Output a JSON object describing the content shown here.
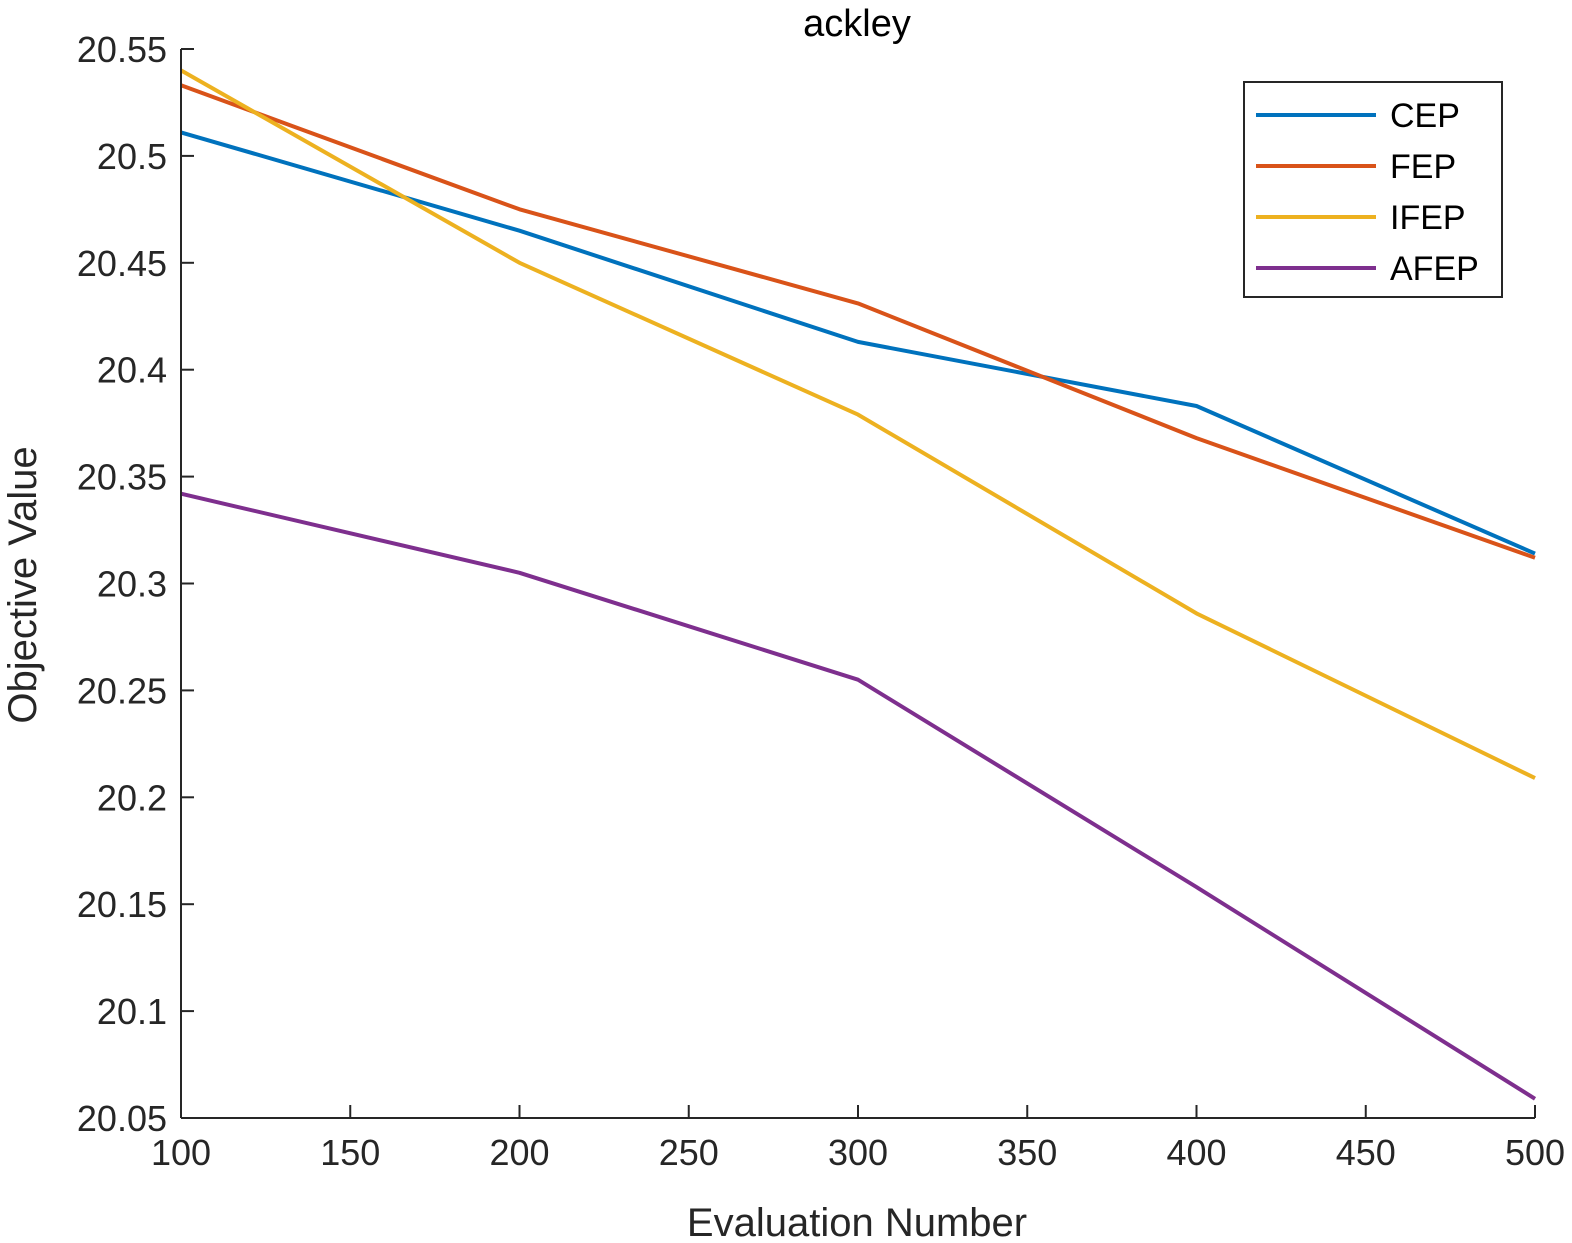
{
  "chart_data": {
    "type": "line",
    "title": "ackley",
    "xlabel": "Evaluation Number",
    "ylabel": "Objective Value",
    "xlim": [
      100,
      500
    ],
    "ylim": [
      20.05,
      20.55
    ],
    "xticks": [
      100,
      150,
      200,
      250,
      300,
      350,
      400,
      450,
      500
    ],
    "xtick_labels": [
      "100",
      "150",
      "200",
      "250",
      "300",
      "350",
      "400",
      "450",
      "500"
    ],
    "yticks": [
      20.05,
      20.1,
      20.15,
      20.2,
      20.25,
      20.3,
      20.35,
      20.4,
      20.45,
      20.5,
      20.55
    ],
    "ytick_labels": [
      "20.05",
      "20.1",
      "20.15",
      "20.2",
      "20.25",
      "20.3",
      "20.35",
      "20.4",
      "20.45",
      "20.5",
      "20.55"
    ],
    "grid": false,
    "legend_position": "top-right",
    "x": [
      100,
      200,
      300,
      400,
      500
    ],
    "series": [
      {
        "name": "CEP",
        "color": "#0072BD",
        "values": [
          20.511,
          20.465,
          20.413,
          20.383,
          20.314
        ]
      },
      {
        "name": "FEP",
        "color": "#D95319",
        "values": [
          20.533,
          20.475,
          20.431,
          20.368,
          20.312
        ]
      },
      {
        "name": "IFEP",
        "color": "#EDB120",
        "values": [
          20.54,
          20.45,
          20.379,
          20.286,
          20.209
        ]
      },
      {
        "name": "AFEP",
        "color": "#7E2F8E",
        "values": [
          20.342,
          20.305,
          20.255,
          20.158,
          20.059
        ]
      }
    ]
  }
}
